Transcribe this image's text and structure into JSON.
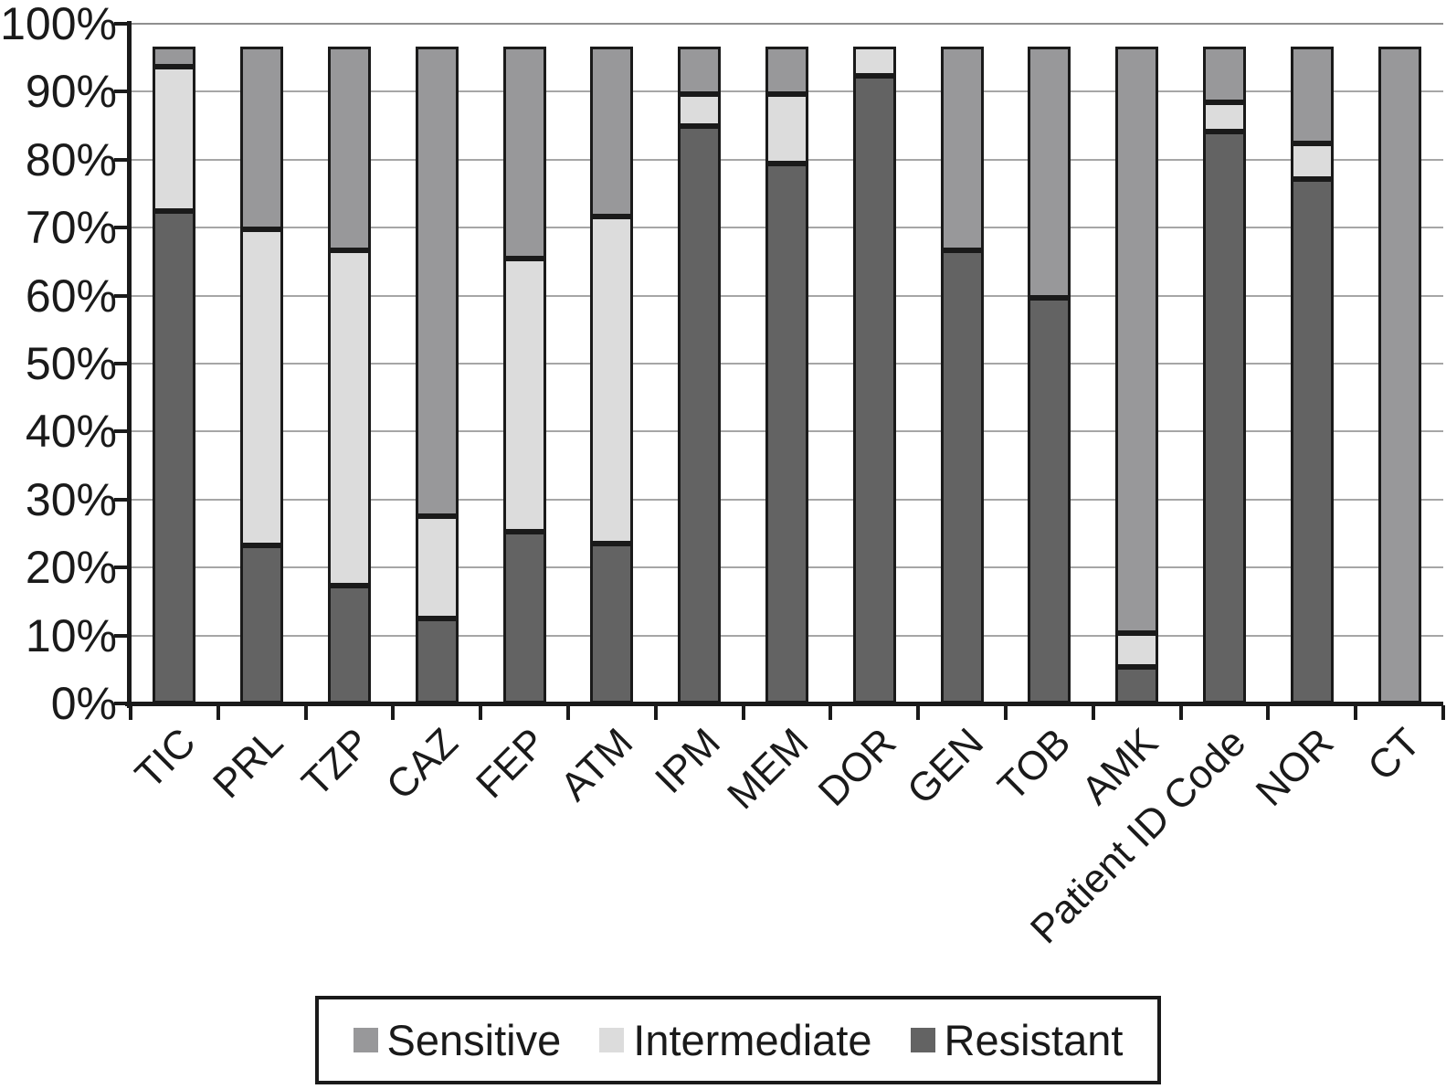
{
  "chart_data": {
    "type": "bar",
    "stacked": true,
    "title": "",
    "categories": [
      "TIC",
      "PRL",
      "TZP",
      "CAZ",
      "FEP",
      "ATM",
      "IPM",
      "MEM",
      "DOR",
      "GEN",
      "TOB",
      "AMK",
      "Patient ID Code",
      "NOR",
      "CT"
    ],
    "series": [
      {
        "name": "Resistant",
        "color": "#636363",
        "values": [
          72.5,
          23.3,
          17.3,
          12.5,
          25.3,
          23.5,
          85.0,
          79.5,
          92.4,
          66.6,
          59.7,
          5.4,
          84.1,
          77.2,
          0
        ]
      },
      {
        "name": "Intermediate",
        "color": "#dcdcdc",
        "values": [
          21.2,
          46.5,
          49.4,
          15.0,
          40.2,
          48.2,
          4.6,
          10.1,
          4.3,
          0,
          0,
          4.9,
          4.4,
          5.2,
          0
        ]
      },
      {
        "name": "Sensitive",
        "color": "#98989a",
        "values": [
          3.0,
          26.9,
          30.0,
          69.2,
          31.2,
          25.0,
          7.1,
          7.1,
          0,
          30.1,
          37.0,
          86.4,
          8.2,
          14.3,
          96.7
        ]
      }
    ],
    "y_axis": {
      "min": 0,
      "max": 100,
      "grid": true,
      "ticks": [
        "100%",
        "90%",
        "80%",
        "70%",
        "60%",
        "50%",
        "40%",
        "30%",
        "20%",
        "10%",
        "0%"
      ]
    },
    "xlabel": "",
    "ylabel": "",
    "legend": {
      "position": "bottom",
      "items": [
        {
          "label": "Sensitive",
          "color": "#98989a"
        },
        {
          "label": "Intermediate",
          "color": "#dcdcdc"
        },
        {
          "label": "Resistant",
          "color": "#636363"
        }
      ]
    }
  }
}
